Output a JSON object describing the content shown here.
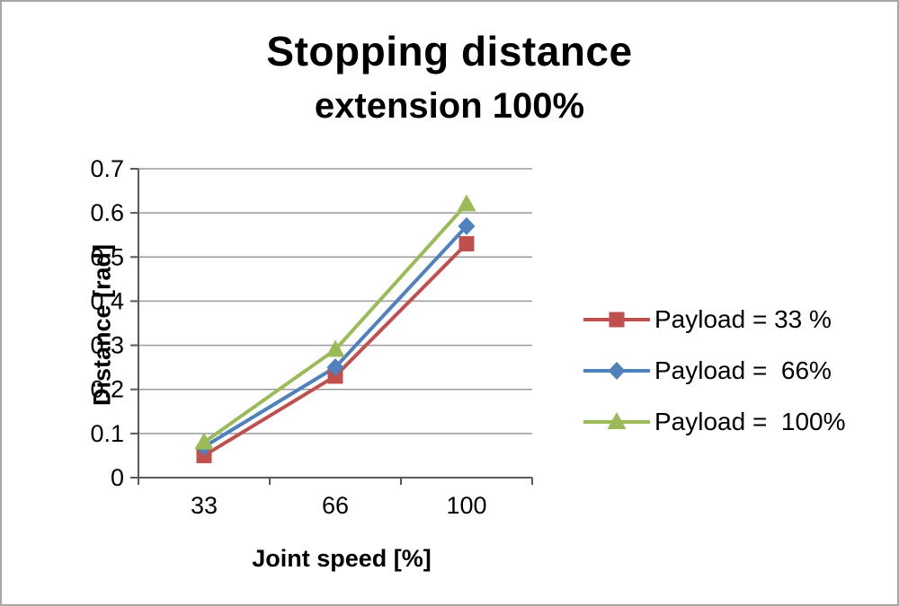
{
  "chart_data": {
    "type": "line",
    "title": "Stopping distance",
    "subtitle": "extension 100%",
    "xlabel": "Joint speed [%]",
    "ylabel": "Distance [rad]",
    "categories": [
      "33",
      "66",
      "100"
    ],
    "ylim": [
      0,
      0.7
    ],
    "yticks": [
      0,
      0.1,
      0.2,
      0.3,
      0.4,
      0.5,
      0.6,
      0.7
    ],
    "ytick_labels": [
      "0",
      "0.1",
      "0.2",
      "0.3",
      "0.4",
      "0.5",
      "0.6",
      "0.7"
    ],
    "grid": true,
    "legend_position": "right",
    "series": [
      {
        "name": "Payload = 33 %",
        "marker": "square",
        "color": "#c0504d",
        "values": [
          0.05,
          0.23,
          0.53
        ]
      },
      {
        "name": "Payload =  66%",
        "marker": "diamond",
        "color": "#4f81bd",
        "values": [
          0.07,
          0.25,
          0.57
        ]
      },
      {
        "name": "Payload =  100%",
        "marker": "triangle",
        "color": "#9bbb59",
        "values": [
          0.08,
          0.29,
          0.62
        ]
      }
    ]
  }
}
